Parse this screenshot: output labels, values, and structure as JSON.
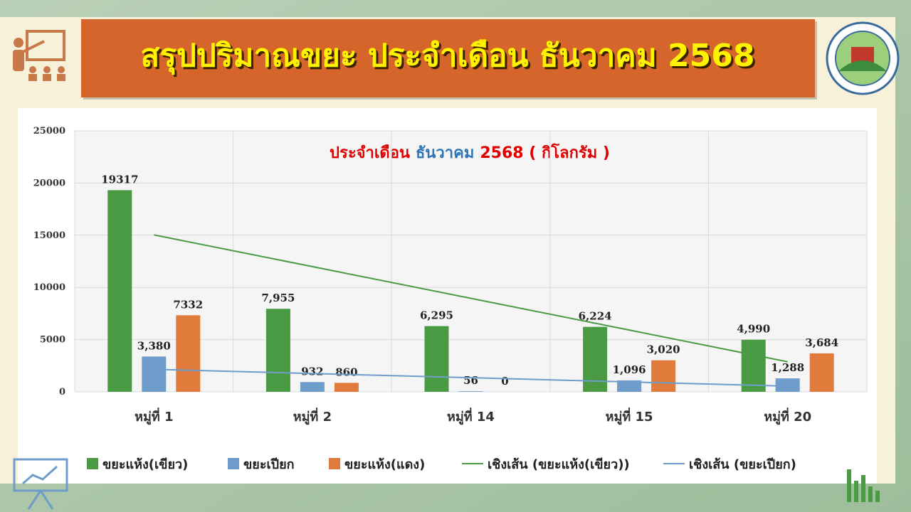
{
  "header": {
    "title": "สรุปปริมาณขยะ ประจำเดือน ธันวาคม 2568"
  },
  "chart_data": {
    "type": "bar",
    "title_parts": [
      {
        "text": "ประจำเดือน",
        "color": "#e00000"
      },
      {
        "text": "ธันวาคม",
        "color": "#2e75b6"
      },
      {
        "text": "2568 ( กิโลกรัม )",
        "color": "#e00000"
      }
    ],
    "categories": [
      "หมู่ที่ 1",
      "หมู่ที่ 2",
      "หมู่ที่ 14",
      "หมู่ที่ 15",
      "หมู่ที่ 20"
    ],
    "series": [
      {
        "name": "ขยะแห้ง(เขียว)",
        "type": "bar",
        "color": "#4a9a44",
        "values": [
          19317,
          7955,
          6295,
          6224,
          4990
        ],
        "value_labels": [
          "19317",
          "7,955",
          "6,295",
          "6,224",
          "4,990"
        ]
      },
      {
        "name": "ขยะเปียก",
        "type": "bar",
        "color": "#6e9ccb",
        "values": [
          3380,
          932,
          56,
          1096,
          1288
        ],
        "value_labels": [
          "3,380",
          "932",
          "56",
          "1,096",
          "1,288"
        ]
      },
      {
        "name": "ขยะแห้ง(แดง)",
        "type": "bar",
        "color": "#e07b3c",
        "values": [
          7332,
          860,
          0,
          3020,
          3684
        ],
        "value_labels": [
          "7332",
          "860",
          "0",
          "3,020",
          "3,684"
        ]
      },
      {
        "name": "เชิงเส้น (ขยะแห้ง(เขียว))",
        "type": "line",
        "color": "#4a9a44",
        "values": [
          15033,
          11995,
          8956,
          5918,
          2879
        ]
      },
      {
        "name": "เชิงเส้น (ขยะเปียก)",
        "type": "line",
        "color": "#6e9ccb",
        "values": [
          2154,
          1752,
          1350,
          948,
          546
        ]
      }
    ],
    "ylim": [
      0,
      25000
    ],
    "yticks": [
      0,
      5000,
      10000,
      15000,
      20000,
      25000
    ],
    "grid": true
  }
}
